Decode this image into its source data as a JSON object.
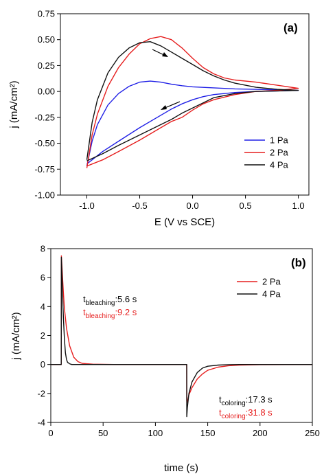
{
  "chart_data": [
    {
      "type": "line",
      "panel_label": "(a)",
      "xlabel": "E (V vs SCE)",
      "ylabel": "j (mA/cm²)",
      "xlim": [
        -1.25,
        1.1
      ],
      "ylim": [
        -1.0,
        0.75
      ],
      "xticks": [
        "-1.0",
        "-0.5",
        "0.0",
        "0.5",
        "1.0"
      ],
      "yticks": [
        "-1.00",
        "-0.75",
        "-0.50",
        "-0.25",
        "0.00",
        "0.25",
        "0.50",
        "0.75"
      ],
      "legend_position": "bottom-right",
      "series": [
        {
          "name": "1 Pa",
          "color": "#1f1fe6",
          "x": [
            -1.0,
            -0.95,
            -0.9,
            -0.8,
            -0.7,
            -0.6,
            -0.5,
            -0.4,
            -0.3,
            -0.2,
            -0.1,
            0.0,
            0.2,
            0.4,
            0.6,
            0.8,
            1.0,
            0.8,
            0.6,
            0.4,
            0.2,
            0.1,
            0.0,
            -0.1,
            -0.2,
            -0.3,
            -0.5,
            -0.7,
            -0.85,
            -1.0
          ],
          "y": [
            -0.72,
            -0.48,
            -0.32,
            -0.13,
            -0.02,
            0.05,
            0.09,
            0.1,
            0.09,
            0.07,
            0.055,
            0.045,
            0.035,
            0.025,
            0.02,
            0.015,
            0.01,
            0.005,
            0.0,
            -0.01,
            -0.03,
            -0.05,
            -0.08,
            -0.12,
            -0.17,
            -0.23,
            -0.35,
            -0.48,
            -0.58,
            -0.7
          ]
        },
        {
          "name": "2 Pa",
          "color": "#e61e1e",
          "x": [
            -1.0,
            -0.95,
            -0.9,
            -0.8,
            -0.7,
            -0.6,
            -0.5,
            -0.4,
            -0.3,
            -0.2,
            -0.1,
            0.0,
            0.1,
            0.2,
            0.3,
            0.4,
            0.6,
            0.8,
            1.0,
            0.8,
            0.6,
            0.4,
            0.2,
            0.1,
            0.0,
            -0.1,
            -0.2,
            -0.3,
            -0.5,
            -0.7,
            -0.85,
            -1.0
          ],
          "y": [
            -0.74,
            -0.42,
            -0.22,
            0.05,
            0.23,
            0.36,
            0.46,
            0.51,
            0.53,
            0.5,
            0.42,
            0.32,
            0.23,
            0.17,
            0.13,
            0.11,
            0.09,
            0.06,
            0.03,
            0.01,
            0.0,
            -0.03,
            -0.08,
            -0.12,
            -0.18,
            -0.25,
            -0.29,
            -0.35,
            -0.47,
            -0.58,
            -0.66,
            -0.72
          ]
        },
        {
          "name": "4 Pa",
          "color": "#111111",
          "x": [
            -1.0,
            -0.95,
            -0.9,
            -0.8,
            -0.7,
            -0.6,
            -0.5,
            -0.4,
            -0.3,
            -0.2,
            -0.1,
            0.0,
            0.1,
            0.2,
            0.3,
            0.4,
            0.6,
            0.8,
            1.0,
            0.8,
            0.6,
            0.4,
            0.2,
            0.1,
            0.0,
            -0.1,
            -0.2,
            -0.3,
            -0.5,
            -0.7,
            -0.85,
            -1.0
          ],
          "y": [
            -0.66,
            -0.3,
            -0.08,
            0.18,
            0.33,
            0.42,
            0.47,
            0.48,
            0.44,
            0.38,
            0.32,
            0.26,
            0.2,
            0.15,
            0.11,
            0.08,
            0.04,
            0.02,
            0.01,
            0.005,
            0.0,
            -0.02,
            -0.06,
            -0.11,
            -0.16,
            -0.21,
            -0.27,
            -0.32,
            -0.42,
            -0.52,
            -0.6,
            -0.67
          ]
        }
      ],
      "annotations": [
        "arrow-right-upper",
        "arrow-left-lower"
      ]
    },
    {
      "type": "line",
      "panel_label": "(b)",
      "xlabel": "time (s)",
      "ylabel": "j (mA/cm²)",
      "xlim": [
        0,
        250
      ],
      "ylim": [
        -4,
        8
      ],
      "xticks": [
        "0",
        "50",
        "100",
        "150",
        "200",
        "250"
      ],
      "yticks": [
        "-4",
        "-2",
        "0",
        "2",
        "4",
        "6",
        "8"
      ],
      "legend_position": "top-right",
      "series": [
        {
          "name": "2 Pa",
          "color": "#e61e1e",
          "x": [
            0,
            10,
            10.1,
            11,
            12,
            13,
            15,
            18,
            22,
            26,
            30,
            40,
            60,
            100,
            129.9,
            130,
            130.5,
            132,
            135,
            140,
            145,
            150,
            160,
            170,
            180,
            200,
            250
          ],
          "y": [
            0,
            0,
            7.5,
            6.3,
            5.0,
            3.9,
            2.5,
            1.3,
            0.5,
            0.2,
            0.08,
            0.02,
            0.0,
            0.0,
            0.0,
            -2.5,
            -2.6,
            -2.1,
            -1.6,
            -1.0,
            -0.65,
            -0.4,
            -0.18,
            -0.08,
            -0.04,
            -0.01,
            0.0
          ]
        },
        {
          "name": "4 Pa",
          "color": "#111111",
          "x": [
            0,
            10,
            10.1,
            11,
            12,
            13,
            14,
            15,
            16,
            18,
            20,
            30,
            100,
            129.9,
            130,
            130.5,
            132,
            135,
            140,
            145,
            150,
            160,
            170,
            180,
            250
          ],
          "y": [
            0,
            0,
            7.4,
            5.5,
            3.3,
            1.8,
            0.8,
            0.35,
            0.15,
            0.05,
            0.0,
            0.0,
            0.0,
            0.0,
            -3.6,
            -3.0,
            -2.0,
            -1.2,
            -0.55,
            -0.25,
            -0.12,
            -0.04,
            -0.01,
            0.0,
            0.0
          ]
        }
      ],
      "annotations": {
        "bleach_black": {
          "main": "t",
          "sub": "bleaching",
          "value": ":5.6 s"
        },
        "bleach_red": {
          "main": "t",
          "sub": "bleaching",
          "value": ":9.2 s"
        },
        "color_black": {
          "main": "t",
          "sub": "coloring",
          "value": ":17.3 s"
        },
        "color_red": {
          "main": "t",
          "sub": "coloring",
          "value": ":31.8 s"
        }
      }
    }
  ]
}
